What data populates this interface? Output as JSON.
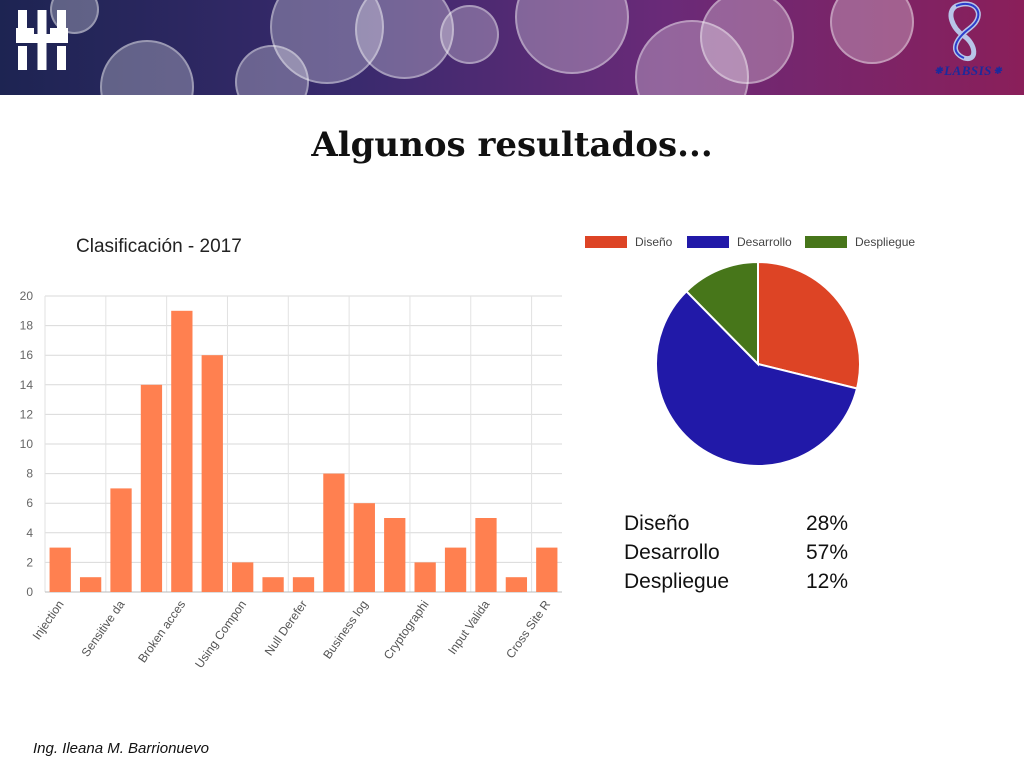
{
  "header": {
    "logo_right_text": "LABSIS",
    "logo_right_symbol": "infinity-8-icon",
    "logo_left_symbol": "utn-logo-icon"
  },
  "slide": {
    "title": "Algunos resultados...",
    "footer": "Ing. Ileana M. Barrionuevo"
  },
  "chart_data": [
    {
      "type": "bar",
      "title": "Clasificación - 2017",
      "categories": [
        "Injection",
        "",
        "Sensitive da",
        "",
        "Broken acces",
        "",
        "Using Compon",
        "",
        "Null Derefer",
        "",
        "Business log",
        "",
        "Cryptographi",
        "",
        "Input Valida",
        "",
        "Cross Site R"
      ],
      "values": [
        3,
        1,
        7,
        14,
        19,
        16,
        2,
        1,
        1,
        8,
        6,
        5,
        2,
        3,
        5,
        1,
        3
      ],
      "ylim": [
        0,
        20
      ],
      "yticks": [
        0,
        2,
        4,
        6,
        8,
        10,
        12,
        14,
        16,
        18,
        20
      ],
      "color": "#ff8050",
      "grid": true
    },
    {
      "type": "pie",
      "legend_position": "top",
      "slices": [
        {
          "label": "Diseño",
          "value": 28,
          "color": "#dd4425"
        },
        {
          "label": "Desarrollo",
          "value": 57,
          "color": "#2119a8"
        },
        {
          "label": "Despliegue",
          "value": 12,
          "color": "#47761a"
        }
      ]
    }
  ],
  "percent_table": [
    {
      "name": "Diseño",
      "value": "28%"
    },
    {
      "name": "Desarrollo",
      "value": "57%"
    },
    {
      "name": "Despliegue",
      "value": "12%"
    }
  ]
}
